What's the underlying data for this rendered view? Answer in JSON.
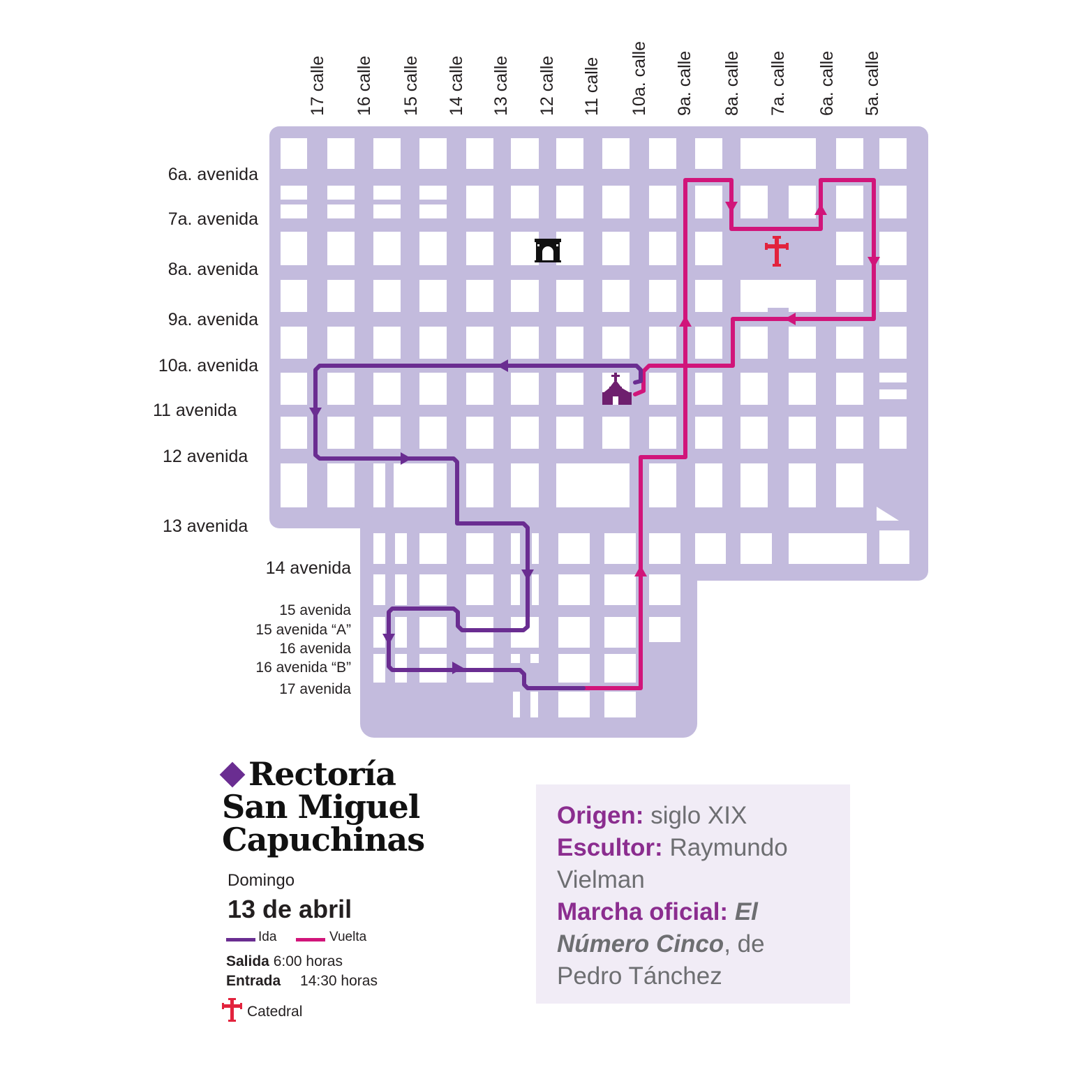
{
  "map": {
    "calles": [
      "17 calle",
      "16 calle",
      "15 calle",
      "14 calle",
      "13 calle",
      "12 calle",
      "11 calle",
      "10a. calle",
      "9a. calle",
      "8a. calle",
      "7a. calle",
      "6a. calle",
      "5a. calle"
    ],
    "avenidas": [
      "6a. avenida",
      "7a. avenida",
      "8a. avenida",
      "9a. avenida",
      "10a. avenida",
      "11 avenida",
      "12 avenida",
      "13 avenida",
      "14 avenida",
      "15 avenida",
      "15 avenida “A”",
      "16 avenida",
      "16 avenida  “B”",
      "17 avenida"
    ],
    "colors": {
      "streets": "#c3bbdd",
      "blocks": "#ffffff",
      "ida": "#6a2d91",
      "vuelta": "#d1157a",
      "church": "#6e1f6e",
      "cathedral": "#e2233d",
      "landmark": "#111111"
    },
    "icons": {
      "church": "church-icon",
      "cathedral": "cathedral-cross-icon",
      "landmark": "gate-arch-icon"
    }
  },
  "title": {
    "line1": "Rectoría",
    "line2": "San Miguel",
    "line3": "Capuchinas"
  },
  "schedule": {
    "day": "Domingo",
    "date": "13 de abril",
    "salida_label": "Salida",
    "salida_time": "6:00 horas",
    "entrada_label": "Entrada",
    "entrada_time": "14:30 horas"
  },
  "legend": {
    "ida": "Ida",
    "vuelta": "Vuelta",
    "catedral": "Catedral"
  },
  "info": {
    "origen_label": "Origen:",
    "origen_value": "siglo XIX",
    "escultor_label": "Escultor:",
    "escultor_value": "Raymundo Vielman",
    "marcha_label": "Marcha oficial:",
    "marcha_title": "El Número Cinco",
    "marcha_suffix": ", de Pedro Tánchez"
  }
}
